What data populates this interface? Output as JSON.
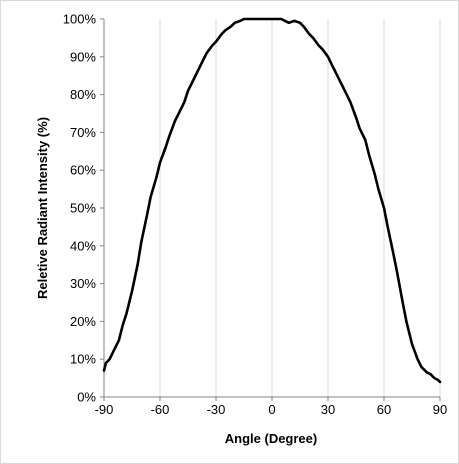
{
  "chart_data": {
    "type": "line",
    "title": "",
    "xlabel": "Angle (Degree)",
    "ylabel": "Reletive Radiant Intensity (%)",
    "xlim": [
      -90,
      90
    ],
    "ylim": [
      0,
      100
    ],
    "x_ticks": [
      -90,
      -60,
      -30,
      0,
      30,
      60,
      90
    ],
    "x_tick_labels": [
      "-90",
      "-60",
      "-30",
      "0",
      "30",
      "60",
      "90"
    ],
    "y_ticks": [
      0,
      10,
      20,
      30,
      40,
      50,
      60,
      70,
      80,
      90,
      100
    ],
    "y_tick_labels": [
      "0%",
      "10%",
      "20%",
      "30%",
      "40%",
      "50%",
      "60%",
      "70%",
      "80%",
      "90%",
      "100%"
    ],
    "grid": "vertical",
    "legend": "none",
    "line_color": "#000000",
    "grid_color": "#d9d9d9",
    "axis_color": "#868686",
    "series": [
      {
        "x": [
          -90,
          -89,
          -87,
          -85,
          -82,
          -80,
          -78,
          -75,
          -72,
          -70,
          -67,
          -65,
          -62,
          -60,
          -57,
          -55,
          -52,
          -50,
          -47,
          -45,
          -42,
          -40,
          -37,
          -35,
          -32,
          -30,
          -27,
          -25,
          -22,
          -20,
          -17,
          -15,
          -12,
          -10,
          -7,
          -5,
          -2,
          0,
          2,
          5,
          7,
          9,
          12,
          15,
          17,
          20,
          22,
          25,
          27,
          30,
          32,
          35,
          37,
          40,
          42,
          45,
          47,
          50,
          52,
          55,
          57,
          60,
          62,
          65,
          67,
          70,
          72,
          75,
          78,
          80,
          83,
          85,
          87,
          89,
          90
        ],
        "values": [
          7,
          9,
          10,
          12,
          15,
          19,
          22,
          28,
          35,
          41,
          48,
          53,
          58,
          62,
          66,
          69,
          73,
          75,
          78,
          81,
          84,
          86,
          89,
          91,
          93,
          94,
          96,
          97,
          98,
          99,
          99.5,
          100,
          100,
          100,
          100,
          100,
          100,
          100,
          100,
          100,
          99.5,
          99,
          99.5,
          99,
          98,
          96,
          95,
          93,
          92,
          90,
          88,
          85,
          83,
          80,
          78,
          74,
          71,
          68,
          64,
          59,
          55,
          50,
          45,
          38,
          33,
          25,
          20,
          14,
          10,
          8,
          6.5,
          6,
          5,
          4.5,
          4
        ]
      }
    ]
  }
}
